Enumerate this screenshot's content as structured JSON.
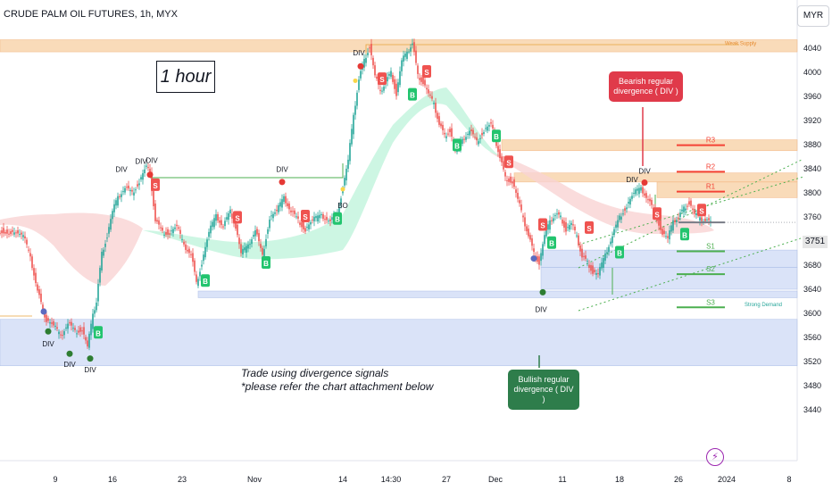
{
  "header": {
    "title": "CRUDE PALM OIL FUTURES, 1h, MYX",
    "currency": "MYR"
  },
  "annotations": {
    "timeframe_box": "1 hour",
    "note_line1": "Trade using divergence signals",
    "note_line2": "*please refer the chart attachment below",
    "bearish_callout": "Bearish regular divergence ( DIV )",
    "bullish_callout": "Bullish regular divergence ( DIV )"
  },
  "current_price": "3751",
  "chart_data": {
    "type": "candlestick",
    "title": "CRUDE PALM OIL FUTURES, 1h, MYX",
    "ylim": [
      3420,
      4070
    ],
    "y_ticks": [
      4040,
      4000,
      3960,
      3920,
      3880,
      3840,
      3800,
      3760,
      3720,
      3680,
      3640,
      3600,
      3560,
      3520,
      3480,
      3440
    ],
    "x_ticks": [
      "9",
      "16",
      "23",
      "Nov",
      "14",
      "14:30",
      "27",
      "Dec",
      "11",
      "18",
      "26",
      "2024",
      "8"
    ],
    "price_path": [
      [
        0,
        3738
      ],
      [
        14,
        3736
      ],
      [
        28,
        3730
      ],
      [
        36,
        3690
      ],
      [
        44,
        3640
      ],
      [
        50,
        3605
      ],
      [
        54,
        3590
      ],
      [
        62,
        3580
      ],
      [
        70,
        3560
      ],
      [
        78,
        3585
      ],
      [
        86,
        3570
      ],
      [
        94,
        3575
      ],
      [
        100,
        3545
      ],
      [
        106,
        3595
      ],
      [
        110,
        3620
      ],
      [
        116,
        3700
      ],
      [
        122,
        3730
      ],
      [
        128,
        3770
      ],
      [
        134,
        3790
      ],
      [
        142,
        3810
      ],
      [
        150,
        3800
      ],
      [
        158,
        3820
      ],
      [
        166,
        3845
      ],
      [
        170,
        3830
      ],
      [
        176,
        3755
      ],
      [
        184,
        3735
      ],
      [
        192,
        3735
      ],
      [
        200,
        3745
      ],
      [
        208,
        3710
      ],
      [
        216,
        3700
      ],
      [
        222,
        3650
      ],
      [
        228,
        3685
      ],
      [
        236,
        3735
      ],
      [
        244,
        3760
      ],
      [
        252,
        3745
      ],
      [
        260,
        3770
      ],
      [
        266,
        3745
      ],
      [
        272,
        3700
      ],
      [
        280,
        3710
      ],
      [
        288,
        3740
      ],
      [
        296,
        3695
      ],
      [
        304,
        3760
      ],
      [
        312,
        3770
      ],
      [
        320,
        3790
      ],
      [
        328,
        3770
      ],
      [
        336,
        3755
      ],
      [
        344,
        3740
      ],
      [
        352,
        3755
      ],
      [
        362,
        3760
      ],
      [
        372,
        3755
      ],
      [
        380,
        3765
      ],
      [
        386,
        3810
      ],
      [
        392,
        3855
      ],
      [
        398,
        3925
      ],
      [
        404,
        3990
      ],
      [
        410,
        4020
      ],
      [
        416,
        4045
      ],
      [
        422,
        3995
      ],
      [
        428,
        3965
      ],
      [
        434,
        3985
      ],
      [
        440,
        4000
      ],
      [
        446,
        3965
      ],
      [
        452,
        4020
      ],
      [
        458,
        4030
      ],
      [
        464,
        4050
      ],
      [
        470,
        3995
      ],
      [
        476,
        3985
      ],
      [
        482,
        3965
      ],
      [
        488,
        3945
      ],
      [
        494,
        3915
      ],
      [
        500,
        3895
      ],
      [
        506,
        3905
      ],
      [
        512,
        3870
      ],
      [
        520,
        3885
      ],
      [
        528,
        3905
      ],
      [
        536,
        3885
      ],
      [
        544,
        3905
      ],
      [
        552,
        3915
      ],
      [
        556,
        3890
      ],
      [
        562,
        3860
      ],
      [
        568,
        3825
      ],
      [
        576,
        3820
      ],
      [
        582,
        3790
      ],
      [
        588,
        3755
      ],
      [
        594,
        3730
      ],
      [
        600,
        3700
      ],
      [
        606,
        3685
      ],
      [
        612,
        3730
      ],
      [
        618,
        3750
      ],
      [
        624,
        3765
      ],
      [
        630,
        3760
      ],
      [
        636,
        3740
      ],
      [
        642,
        3750
      ],
      [
        648,
        3725
      ],
      [
        654,
        3695
      ],
      [
        660,
        3685
      ],
      [
        666,
        3670
      ],
      [
        672,
        3665
      ],
      [
        680,
        3695
      ],
      [
        688,
        3730
      ],
      [
        696,
        3760
      ],
      [
        704,
        3780
      ],
      [
        712,
        3800
      ],
      [
        720,
        3805
      ],
      [
        728,
        3790
      ],
      [
        736,
        3765
      ],
      [
        744,
        3735
      ],
      [
        750,
        3725
      ],
      [
        756,
        3750
      ],
      [
        762,
        3760
      ],
      [
        768,
        3775
      ],
      [
        774,
        3785
      ],
      [
        780,
        3765
      ],
      [
        786,
        3755
      ],
      [
        792,
        3755
      ],
      [
        798,
        3751
      ]
    ],
    "zones": [
      {
        "label": "Weak Supply",
        "y1": 4034,
        "y2": 4054,
        "color": "#f8d5ad"
      },
      {
        "label": "",
        "y1": 3870,
        "y2": 3888,
        "color": "#f8d5ad"
      },
      {
        "label": "",
        "y1": 3818,
        "y2": 3833,
        "color": "#f8d5ad"
      },
      {
        "label": "",
        "y1": 3792,
        "y2": 3818,
        "color": "#f8d5ad"
      },
      {
        "label": "",
        "y1": 3676,
        "y2": 3705,
        "color": "#d4dff7"
      },
      {
        "label": "",
        "y1": 3640,
        "y2": 3676,
        "color": "#d4dff7"
      },
      {
        "label": "",
        "y1": 3626,
        "y2": 3637,
        "color": "#d4dff7"
      },
      {
        "label": "",
        "y1": 3513,
        "y2": 3590,
        "color": "#d4dff7"
      }
    ],
    "levels": [
      {
        "label": "R3",
        "y": 3879,
        "color": "#f44336"
      },
      {
        "label": "R2",
        "y": 3835,
        "color": "#f44336"
      },
      {
        "label": "R1",
        "y": 3802,
        "color": "#f44336"
      },
      {
        "label": "S1",
        "y": 3703,
        "color": "#4caf50"
      },
      {
        "label": "S2",
        "y": 3665,
        "color": "#4caf50"
      },
      {
        "label": "S3",
        "y": 3610,
        "color": "#4caf50"
      }
    ],
    "zone_text": "Strong Demand",
    "div_label": "DIV",
    "bo_label": "BO",
    "buy_label": "B",
    "sell_label": "S",
    "buy_signals": [
      [
        230,
        3653
      ],
      [
        298,
        3683
      ],
      [
        378,
        3756
      ],
      [
        462,
        3962
      ],
      [
        512,
        3878
      ],
      [
        556,
        3893
      ],
      [
        618,
        3716
      ],
      [
        694,
        3700
      ],
      [
        767,
        3730
      ],
      [
        110,
        3567
      ]
    ],
    "sell_signals": [
      [
        174,
        3812
      ],
      [
        266,
        3758
      ],
      [
        342,
        3760
      ],
      [
        428,
        3988
      ],
      [
        478,
        4000
      ],
      [
        570,
        3850
      ],
      [
        608,
        3746
      ],
      [
        660,
        3741
      ],
      [
        736,
        3764
      ],
      [
        786,
        3770
      ]
    ],
    "red_dots": [
      [
        168,
        3830
      ],
      [
        316,
        3818
      ],
      [
        404,
        4010
      ],
      [
        722,
        3817
      ]
    ],
    "green_dots": [
      [
        54,
        3570
      ],
      [
        78,
        3533
      ],
      [
        101,
        3525
      ],
      [
        608,
        3635
      ]
    ],
    "purple_dots": [
      [
        49,
        3603
      ],
      [
        598,
        3691
      ]
    ],
    "yellow_dots": [
      [
        398,
        3986
      ],
      [
        384,
        3806
      ]
    ],
    "div_texts": [
      [
        136,
        3835
      ],
      [
        158,
        3848
      ],
      [
        170,
        3850
      ],
      [
        316,
        3835
      ],
      [
        402,
        4028
      ],
      [
        708,
        3818
      ],
      [
        722,
        3832
      ],
      [
        54,
        3545
      ],
      [
        78,
        3511
      ],
      [
        101,
        3502
      ],
      [
        606,
        3602
      ]
    ]
  },
  "colors": {
    "up": "#26a69a",
    "down": "#ef5350",
    "green_cloud": "#c8f5e0",
    "red_cloud": "#f9d3d3"
  }
}
